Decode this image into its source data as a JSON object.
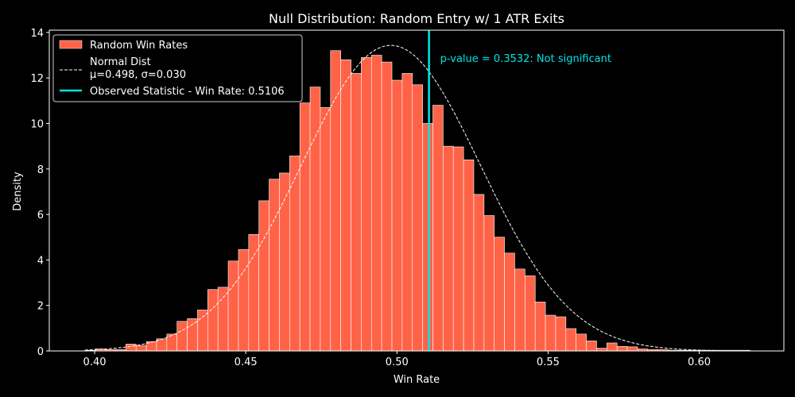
{
  "chart_data": {
    "type": "bar",
    "title": "Null Distribution: Random Entry w/ 1 ATR Exits",
    "xlabel": "Win Rate",
    "ylabel": "Density",
    "xlim": [
      0.385,
      0.628
    ],
    "ylim": [
      0,
      14.1
    ],
    "xticks": [
      0.4,
      0.45,
      0.5,
      0.55,
      0.6
    ],
    "xtick_labels": [
      "0.40",
      "0.45",
      "0.50",
      "0.55",
      "0.60"
    ],
    "yticks": [
      0,
      2,
      4,
      6,
      8,
      10,
      12,
      14
    ],
    "ytick_labels": [
      "0",
      "2",
      "4",
      "6",
      "8",
      "10",
      "12",
      "14"
    ],
    "grid": false,
    "legend_position": "top-left",
    "histogram": {
      "name": "Random Win Rates",
      "color": "#ff6347",
      "edge_color": "#ffffff",
      "bin_start": 0.3968,
      "bin_width": 0.003385,
      "values": [
        0.03,
        0.09,
        0.06,
        0.06,
        0.3,
        0.24,
        0.41,
        0.53,
        0.74,
        1.3,
        1.42,
        1.8,
        2.7,
        2.8,
        3.95,
        4.46,
        5.12,
        6.6,
        7.55,
        7.82,
        8.57,
        10.9,
        11.6,
        10.7,
        13.2,
        12.8,
        12.2,
        12.9,
        13.0,
        12.7,
        11.9,
        12.2,
        11.7,
        10.0,
        10.8,
        9.0,
        8.97,
        8.4,
        6.88,
        5.95,
        5.0,
        4.3,
        3.6,
        3.3,
        2.15,
        1.57,
        1.5,
        0.98,
        0.74,
        0.44,
        0.12,
        0.35,
        0.2,
        0.18,
        0.09,
        0.06,
        0.06,
        0.03,
        0.03,
        0.03,
        0.03,
        0.03,
        0.03,
        0.03,
        0.03
      ]
    },
    "normal_fit": {
      "label_line1": "Normal Dist",
      "label_line2": "μ=0.498, σ=0.030",
      "mu": 0.498,
      "sigma": 0.0297,
      "x_min": 0.3968,
      "x_max": 0.6168,
      "color": "#ffffff"
    },
    "observed": {
      "label": "Observed Statistic - Win Rate: 0.5106",
      "value": 0.5106,
      "color": "#00e5e5"
    },
    "annotation": {
      "text": "p-value = 0.3532:  Not significant",
      "x": 0.5143,
      "y": 12.7,
      "color": "#00e5e5"
    }
  }
}
